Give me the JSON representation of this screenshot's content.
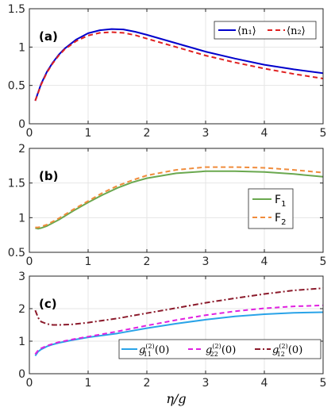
{
  "chart_data": [
    {
      "type": "line",
      "panel_label": "(a)",
      "xlim": [
        0,
        5
      ],
      "ylim": [
        0,
        1.5
      ],
      "xticks": [
        "0",
        "1",
        "2",
        "3",
        "4",
        "5"
      ],
      "yticks": [
        "0",
        "0.5",
        "1",
        "1.5"
      ],
      "grid": true,
      "legend_placement": "top-right",
      "x": [
        0.1,
        0.2,
        0.3,
        0.4,
        0.5,
        0.6,
        0.8,
        1.0,
        1.2,
        1.4,
        1.6,
        1.8,
        2.0,
        2.5,
        3.0,
        3.5,
        4.0,
        4.5,
        5.0
      ],
      "series": [
        {
          "name": "⟨n₁⟩",
          "color": "#0000cc",
          "dash": "solid",
          "values": [
            0.3,
            0.52,
            0.68,
            0.8,
            0.9,
            0.98,
            1.1,
            1.18,
            1.22,
            1.235,
            1.23,
            1.2,
            1.16,
            1.05,
            0.94,
            0.85,
            0.77,
            0.71,
            0.66
          ]
        },
        {
          "name": "⟨n₂⟩",
          "color": "#e02020",
          "dash": "dashed",
          "values": [
            0.3,
            0.51,
            0.67,
            0.79,
            0.89,
            0.97,
            1.08,
            1.15,
            1.185,
            1.195,
            1.185,
            1.155,
            1.11,
            1.0,
            0.89,
            0.8,
            0.72,
            0.65,
            0.59
          ]
        }
      ]
    },
    {
      "type": "line",
      "panel_label": "(b)",
      "xlim": [
        0,
        5
      ],
      "ylim": [
        0.5,
        2
      ],
      "xticks": [
        "0",
        "1",
        "2",
        "3",
        "4",
        "5"
      ],
      "yticks": [
        "0.5",
        "1",
        "1.5",
        "2"
      ],
      "grid": true,
      "legend_placement": "right",
      "x": [
        0.1,
        0.15,
        0.2,
        0.3,
        0.5,
        0.75,
        1.0,
        1.25,
        1.5,
        1.75,
        2.0,
        2.5,
        3.0,
        3.5,
        4.0,
        4.5,
        5.0
      ],
      "series": [
        {
          "name": "F",
          "subscript": "1",
          "color": "#6aa84f",
          "dash": "solid",
          "values": [
            0.85,
            0.84,
            0.85,
            0.88,
            0.97,
            1.1,
            1.22,
            1.33,
            1.43,
            1.51,
            1.57,
            1.64,
            1.67,
            1.67,
            1.66,
            1.63,
            1.59
          ]
        },
        {
          "name": "F",
          "subscript": "2",
          "color": "#f08c3c",
          "dash": "dashed",
          "values": [
            0.86,
            0.86,
            0.87,
            0.9,
            0.99,
            1.12,
            1.24,
            1.36,
            1.46,
            1.54,
            1.61,
            1.69,
            1.73,
            1.73,
            1.72,
            1.69,
            1.65
          ]
        }
      ]
    },
    {
      "type": "line",
      "panel_label": "(c)",
      "xlim": [
        0,
        5
      ],
      "ylim": [
        0,
        3
      ],
      "xticks": [
        "0",
        "1",
        "2",
        "3",
        "4",
        "5"
      ],
      "yticks": [
        "0",
        "1",
        "2",
        "3"
      ],
      "xlabel": "η/g",
      "grid": true,
      "legend_placement": "bottom",
      "x": [
        0.1,
        0.15,
        0.2,
        0.3,
        0.4,
        0.5,
        0.75,
        1.0,
        1.5,
        2.0,
        2.5,
        3.0,
        3.5,
        4.0,
        4.5,
        5.0
      ],
      "series": [
        {
          "name": "g",
          "subscript": "11",
          "color": "#29a3e8",
          "dash": "solid",
          "values": [
            0.55,
            0.68,
            0.75,
            0.84,
            0.9,
            0.95,
            1.04,
            1.12,
            1.24,
            1.4,
            1.54,
            1.66,
            1.76,
            1.83,
            1.87,
            1.89
          ]
        },
        {
          "name": "g",
          "subscript": "22",
          "color": "#e020e0",
          "dash": "dashed",
          "values": [
            0.6,
            0.72,
            0.78,
            0.86,
            0.92,
            0.97,
            1.06,
            1.14,
            1.3,
            1.48,
            1.65,
            1.8,
            1.92,
            2.01,
            2.07,
            2.1
          ]
        },
        {
          "name": "g",
          "subscript": "12",
          "color": "#8b1a2b",
          "dash": "dashdot",
          "values": [
            1.95,
            1.72,
            1.6,
            1.53,
            1.5,
            1.5,
            1.52,
            1.57,
            1.7,
            1.86,
            2.02,
            2.18,
            2.32,
            2.45,
            2.56,
            2.63
          ]
        }
      ]
    }
  ]
}
